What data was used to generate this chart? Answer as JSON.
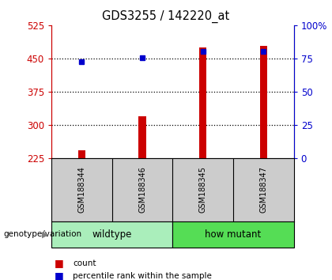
{
  "title": "GDS3255 / 142220_at",
  "samples": [
    "GSM188344",
    "GSM188346",
    "GSM188345",
    "GSM188347"
  ],
  "count_values": [
    243,
    320,
    475,
    478
  ],
  "percentile_values": [
    443,
    452,
    465,
    465
  ],
  "baseline": 225,
  "ylim_left": [
    225,
    525
  ],
  "ylim_right": [
    0,
    100
  ],
  "yticks_left": [
    225,
    300,
    375,
    450,
    525
  ],
  "yticks_right": [
    0,
    25,
    50,
    75,
    100
  ],
  "ytick_labels_right": [
    "0",
    "25",
    "50",
    "75",
    "100%"
  ],
  "bar_color": "#cc0000",
  "dot_color": "#0000cc",
  "group_labels": [
    "wildtype",
    "how mutant"
  ],
  "group_colors": [
    "#aaeebb",
    "#55dd55"
  ],
  "group_ranges": [
    [
      0,
      2
    ],
    [
      2,
      4
    ]
  ],
  "label_bg_color": "#cccccc",
  "bar_width": 0.12,
  "genotype_label": "genotype/variation",
  "dotted_yticks": [
    300,
    375,
    450
  ]
}
